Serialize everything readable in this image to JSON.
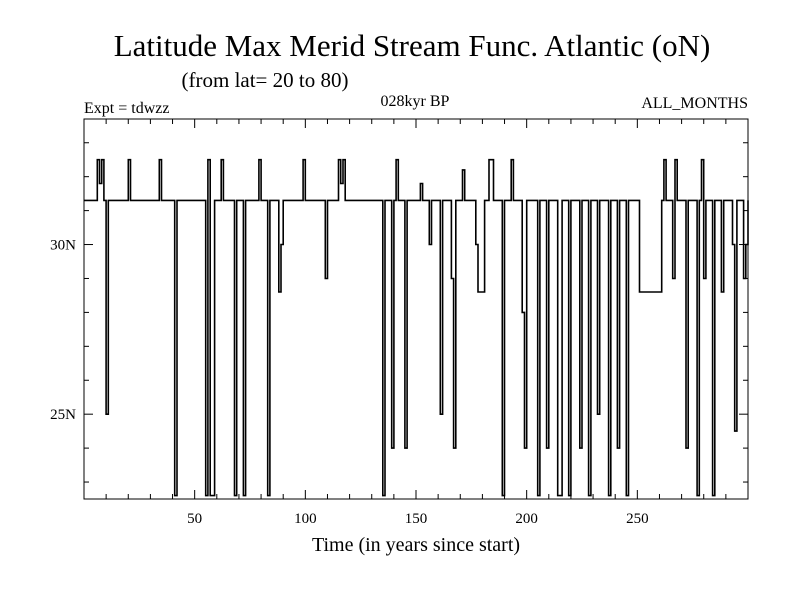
{
  "chart_data": {
    "type": "line",
    "title": "Latitude Max Merid Stream Func. Atlantic (oN)",
    "subtitle": "(from lat= 20 to 80)",
    "experiment_label": "Expt = tdwzz",
    "period_label": "028kyr BP",
    "months_label": "ALL_MONTHS",
    "xlabel": "Time (in years since start)",
    "ylabel": "",
    "xlim": [
      0,
      300
    ],
    "ylim": [
      22.5,
      33.7
    ],
    "x_ticks": [
      50,
      100,
      150,
      200,
      250
    ],
    "y_ticks": [
      25,
      30
    ],
    "y_tick_labels": [
      "25N",
      "30N"
    ],
    "grid": false,
    "series": [
      {
        "color": "#000000",
        "line_style": "step",
        "points": [
          [
            0,
            31.3
          ],
          [
            5,
            31.3
          ],
          [
            6,
            32.5
          ],
          [
            7,
            31.8
          ],
          [
            8,
            32.5
          ],
          [
            9,
            31.3
          ],
          [
            10,
            25
          ],
          [
            11,
            31.3
          ],
          [
            18,
            31.3
          ],
          [
            20,
            32.5
          ],
          [
            21,
            31.3
          ],
          [
            33,
            31.3
          ],
          [
            34,
            32.5
          ],
          [
            35,
            31.3
          ],
          [
            40,
            31.3
          ],
          [
            41,
            22.6
          ],
          [
            42,
            31.3
          ],
          [
            54,
            31.3
          ],
          [
            55,
            22.6
          ],
          [
            56,
            32.5
          ],
          [
            57,
            22.6
          ],
          [
            58,
            22.6
          ],
          [
            59,
            31.3
          ],
          [
            61,
            31.3
          ],
          [
            62,
            32.5
          ],
          [
            63,
            31.3
          ],
          [
            67,
            31.3
          ],
          [
            68,
            22.6
          ],
          [
            69,
            31.3
          ],
          [
            71,
            31.3
          ],
          [
            72,
            22.6
          ],
          [
            73,
            31.3
          ],
          [
            78,
            31.3
          ],
          [
            79,
            32.5
          ],
          [
            80,
            31.3
          ],
          [
            82,
            31.3
          ],
          [
            83,
            22.6
          ],
          [
            84,
            31.3
          ],
          [
            87,
            31.3
          ],
          [
            88,
            28.6
          ],
          [
            89,
            30
          ],
          [
            90,
            31.3
          ],
          [
            98,
            31.3
          ],
          [
            99,
            32.5
          ],
          [
            100,
            31.3
          ],
          [
            108,
            31.3
          ],
          [
            109,
            29
          ],
          [
            110,
            31.3
          ],
          [
            114,
            31.3
          ],
          [
            115,
            32.5
          ],
          [
            116,
            31.8
          ],
          [
            117,
            32.5
          ],
          [
            118,
            31.3
          ],
          [
            134,
            31.3
          ],
          [
            135,
            22.6
          ],
          [
            136,
            31.3
          ],
          [
            138,
            31.3
          ],
          [
            139,
            24
          ],
          [
            140,
            31.3
          ],
          [
            141,
            32.5
          ],
          [
            142,
            31.3
          ],
          [
            144,
            31.3
          ],
          [
            145,
            24
          ],
          [
            146,
            31.3
          ],
          [
            151,
            31.3
          ],
          [
            152,
            31.8
          ],
          [
            153,
            31.3
          ],
          [
            155,
            31.3
          ],
          [
            156,
            30
          ],
          [
            157,
            31.3
          ],
          [
            160,
            31.3
          ],
          [
            161,
            25
          ],
          [
            162,
            31.3
          ],
          [
            165,
            31.3
          ],
          [
            166,
            29
          ],
          [
            167,
            24
          ],
          [
            168,
            31.3
          ],
          [
            170,
            31.3
          ],
          [
            171,
            32.2
          ],
          [
            172,
            31.3
          ],
          [
            176,
            31.3
          ],
          [
            177,
            30
          ],
          [
            178,
            28.6
          ],
          [
            179,
            28.6
          ],
          [
            180,
            28.6
          ],
          [
            181,
            31.3
          ],
          [
            182,
            31.3
          ],
          [
            183,
            32.5
          ],
          [
            184,
            32.5
          ],
          [
            185,
            31.3
          ],
          [
            188,
            31.3
          ],
          [
            189,
            22.6
          ],
          [
            190,
            31.3
          ],
          [
            192,
            31.3
          ],
          [
            193,
            32.5
          ],
          [
            194,
            31.3
          ],
          [
            197,
            31.3
          ],
          [
            198,
            28
          ],
          [
            199,
            24
          ],
          [
            200,
            31.3
          ],
          [
            204,
            31.3
          ],
          [
            205,
            22.6
          ],
          [
            206,
            31.3
          ],
          [
            208,
            31.3
          ],
          [
            209,
            24
          ],
          [
            210,
            31.3
          ],
          [
            213,
            31.3
          ],
          [
            214,
            22.6
          ],
          [
            215,
            22.6
          ],
          [
            216,
            31.3
          ],
          [
            218,
            31.3
          ],
          [
            219,
            22.6
          ],
          [
            220,
            31.3
          ],
          [
            223,
            31.3
          ],
          [
            224,
            24
          ],
          [
            225,
            31.3
          ],
          [
            227,
            31.3
          ],
          [
            228,
            22.6
          ],
          [
            229,
            31.3
          ],
          [
            231,
            31.3
          ],
          [
            232,
            25
          ],
          [
            233,
            31.3
          ],
          [
            236,
            31.3
          ],
          [
            237,
            22.6
          ],
          [
            238,
            31.3
          ],
          [
            240,
            31.3
          ],
          [
            241,
            24
          ],
          [
            242,
            31.3
          ],
          [
            244,
            31.3
          ],
          [
            245,
            22.6
          ],
          [
            246,
            31.3
          ],
          [
            250,
            31.3
          ],
          [
            251,
            28.6
          ],
          [
            260,
            28.6
          ],
          [
            261,
            31.3
          ],
          [
            262,
            32.5
          ],
          [
            263,
            31.3
          ],
          [
            265,
            31.3
          ],
          [
            266,
            29
          ],
          [
            267,
            32.5
          ],
          [
            268,
            31.3
          ],
          [
            271,
            31.3
          ],
          [
            272,
            24
          ],
          [
            273,
            31.3
          ],
          [
            276,
            31.3
          ],
          [
            277,
            22.6
          ],
          [
            278,
            31.3
          ],
          [
            279,
            32.5
          ],
          [
            280,
            29
          ],
          [
            281,
            31.3
          ],
          [
            283,
            31.3
          ],
          [
            284,
            22.6
          ],
          [
            285,
            31.3
          ],
          [
            287,
            31.3
          ],
          [
            288,
            28.6
          ],
          [
            289,
            31.3
          ],
          [
            292,
            31.3
          ],
          [
            293,
            30
          ],
          [
            294,
            24.5
          ],
          [
            295,
            31.3
          ],
          [
            297,
            31.3
          ],
          [
            298,
            29
          ],
          [
            299,
            30
          ],
          [
            300,
            31.3
          ]
        ]
      }
    ]
  }
}
